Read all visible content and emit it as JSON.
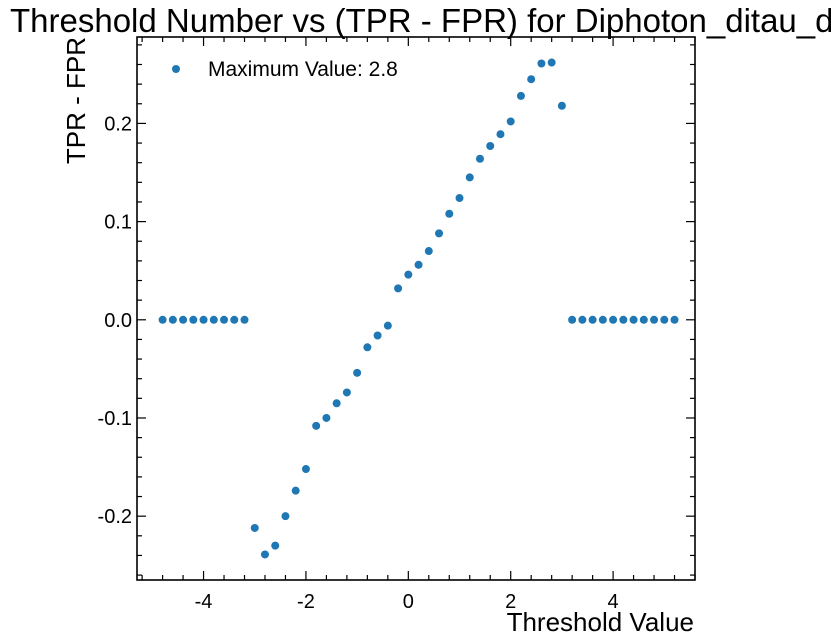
{
  "chart_data": {
    "type": "scatter",
    "title": "Threshold Number vs (TPR - FPR) for Diphoton_ditau_dphi",
    "xlabel": "Threshold Value",
    "ylabel": "TPR - FPR",
    "xlim": [
      -5.3,
      5.6
    ],
    "ylim": [
      -0.265,
      0.288
    ],
    "xticks": [
      -4,
      -2,
      0,
      2,
      4
    ],
    "xtick_labels": [
      "-4",
      "-2",
      "0",
      "2",
      "4"
    ],
    "yticks": [
      -0.2,
      -0.1,
      0.0,
      0.1,
      0.2
    ],
    "ytick_labels": [
      "-0.2",
      "-0.1",
      "0.0",
      "0.1",
      "0.2"
    ],
    "grid": false,
    "legend_position": "top-left",
    "marker_color": "#1f77b4",
    "series": [
      {
        "name": "Maximum Value:  2.8",
        "x": [
          -4.8,
          -4.6,
          -4.4,
          -4.2,
          -4.0,
          -3.8,
          -3.6,
          -3.4,
          -3.2,
          -3.0,
          -2.8,
          -2.6,
          -2.4,
          -2.2,
          -2.0,
          -1.8,
          -1.6,
          -1.4,
          -1.2,
          -1.0,
          -0.8,
          -0.6,
          -0.4,
          -0.2,
          0.0,
          0.2,
          0.4,
          0.6,
          0.8,
          1.0,
          1.2,
          1.4,
          1.6,
          1.8,
          2.0,
          2.2,
          2.4,
          2.6,
          2.8,
          3.0,
          3.2,
          3.4,
          3.6,
          3.8,
          4.0,
          4.2,
          4.4,
          4.6,
          4.8,
          5.0,
          5.2
        ],
        "y": [
          0.0,
          0.0,
          0.0,
          0.0,
          0.0,
          0.0,
          0.0,
          0.0,
          0.0,
          -0.212,
          -0.239,
          -0.23,
          -0.2,
          -0.174,
          -0.152,
          -0.108,
          -0.1,
          -0.085,
          -0.074,
          -0.054,
          -0.028,
          -0.016,
          -0.006,
          0.032,
          0.046,
          0.056,
          0.07,
          0.088,
          0.108,
          0.124,
          0.145,
          0.164,
          0.177,
          0.189,
          0.202,
          0.228,
          0.245,
          0.261,
          0.262,
          0.218,
          0.0,
          0.0,
          0.0,
          0.0,
          0.0,
          0.0,
          0.0,
          0.0,
          0.0,
          0.0,
          0.0
        ]
      }
    ]
  }
}
